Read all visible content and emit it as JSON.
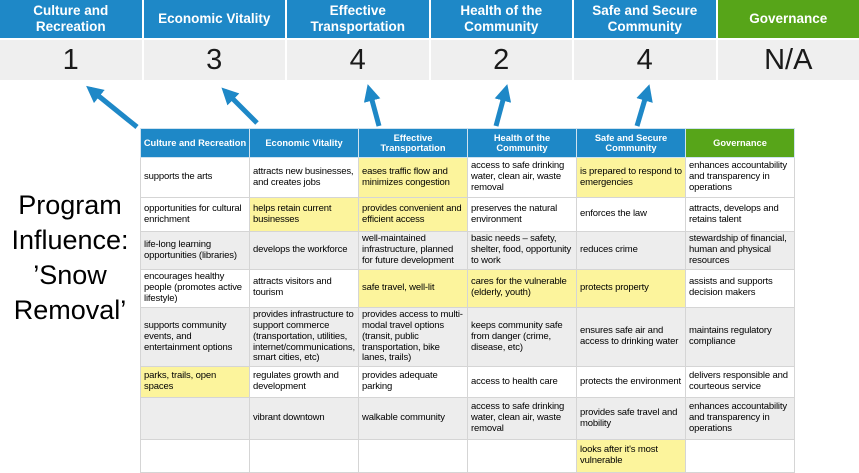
{
  "program_label": {
    "lines": [
      "Program",
      "Influence:",
      "’Snow",
      "Removal’"
    ]
  },
  "summary": {
    "columns": [
      {
        "label": "Culture and Recreation",
        "score": "1",
        "theme": "blue"
      },
      {
        "label": "Economic Vitality",
        "score": "3",
        "theme": "blue"
      },
      {
        "label": "Effective Transportation",
        "score": "4",
        "theme": "blue"
      },
      {
        "label": "Health of the Community",
        "score": "2",
        "theme": "blue"
      },
      {
        "label": "Safe and Secure Community",
        "score": "4",
        "theme": "blue"
      },
      {
        "label": "Governance",
        "score": "N/A",
        "theme": "green"
      }
    ]
  },
  "matrix": {
    "headers": [
      {
        "label": "Culture and Recreation",
        "theme": "blue"
      },
      {
        "label": "Economic Vitality",
        "theme": "blue"
      },
      {
        "label": "Effective Transportation",
        "theme": "blue"
      },
      {
        "label": "Health of the Community",
        "theme": "blue"
      },
      {
        "label": "Safe and Secure Community",
        "theme": "blue"
      },
      {
        "label": "Governance",
        "theme": "green"
      }
    ],
    "rows": [
      [
        {
          "text": "supports the arts",
          "highlight": false
        },
        {
          "text": "attracts new businesses, and creates jobs",
          "highlight": false
        },
        {
          "text": "eases traffic flow and minimizes congestion",
          "highlight": true
        },
        {
          "text": "access to safe drinking water, clean air, waste removal",
          "highlight": false
        },
        {
          "text": "is prepared to respond to emergencies",
          "highlight": true
        },
        {
          "text": "enhances accountability and transparency in operations",
          "highlight": false
        }
      ],
      [
        {
          "text": "opportunities for cultural enrichment",
          "highlight": false
        },
        {
          "text": "helps retain current businesses",
          "highlight": true
        },
        {
          "text": "provides convenient and efficient access",
          "highlight": true
        },
        {
          "text": "preserves the natural environment",
          "highlight": false
        },
        {
          "text": "enforces the law",
          "highlight": false
        },
        {
          "text": "attracts, develops and retains talent",
          "highlight": false
        }
      ],
      [
        {
          "text": "life-long learning opportunities (libraries)",
          "highlight": false
        },
        {
          "text": "develops the workforce",
          "highlight": false
        },
        {
          "text": "well-maintained infrastructure, planned for future development",
          "highlight": false
        },
        {
          "text": "basic needs – safety, shelter, food, opportunity to work",
          "highlight": true
        },
        {
          "text": "reduces crime",
          "highlight": false
        },
        {
          "text": "stewardship of financial, human and physical resources",
          "highlight": false
        }
      ],
      [
        {
          "text": "encourages healthy people (promotes active lifestyle)",
          "highlight": false
        },
        {
          "text": "attracts visitors and tourism",
          "highlight": false
        },
        {
          "text": "safe travel, well-lit",
          "highlight": true
        },
        {
          "text": "cares for the vulnerable (elderly, youth)",
          "highlight": true
        },
        {
          "text": "protects property",
          "highlight": true
        },
        {
          "text": "assists and supports decision makers",
          "highlight": false
        }
      ],
      [
        {
          "text": "supports community events, and entertainment options",
          "highlight": false
        },
        {
          "text": "provides infrastructure to support commerce (transportation, utilities, internet/communications, smart cities, etc)",
          "highlight": true
        },
        {
          "text": "provides access to multi-modal travel options (transit, public transportation, bike lanes, trails)",
          "highlight": true
        },
        {
          "text": "keeps community safe from danger (crime, disease, etc)",
          "highlight": true
        },
        {
          "text": "ensures safe air and access to drinking water",
          "highlight": false
        },
        {
          "text": "maintains regulatory compliance",
          "highlight": false
        }
      ],
      [
        {
          "text": "parks, trails, open spaces",
          "highlight": true
        },
        {
          "text": "regulates growth and development",
          "highlight": false
        },
        {
          "text": "provides adequate parking",
          "highlight": false
        },
        {
          "text": "access to health care",
          "highlight": false
        },
        {
          "text": "protects the environment",
          "highlight": false
        },
        {
          "text": "delivers responsible and courteous service",
          "highlight": false
        }
      ],
      [
        {
          "text": "",
          "highlight": false
        },
        {
          "text": "vibrant downtown",
          "highlight": false
        },
        {
          "text": "walkable community",
          "highlight": false
        },
        {
          "text": "access to safe drinking water, clean air, waste removal",
          "highlight": false
        },
        {
          "text": "provides safe travel and mobility",
          "highlight": true
        },
        {
          "text": "enhances accountability and transparency in operations",
          "highlight": false
        }
      ],
      [
        {
          "text": "",
          "highlight": false
        },
        {
          "text": "",
          "highlight": false
        },
        {
          "text": "",
          "highlight": false
        },
        {
          "text": "",
          "highlight": false
        },
        {
          "text": "looks after it's most vulnerable",
          "highlight": true
        },
        {
          "text": "",
          "highlight": false
        }
      ]
    ]
  },
  "colors": {
    "header_blue": "#1E88C7",
    "header_green": "#57A519",
    "highlight_yellow": "#FCF49C",
    "score_bg": "#EFEFEF",
    "band_gray": "#EDEDED",
    "arrow_blue": "#1E88C7"
  }
}
